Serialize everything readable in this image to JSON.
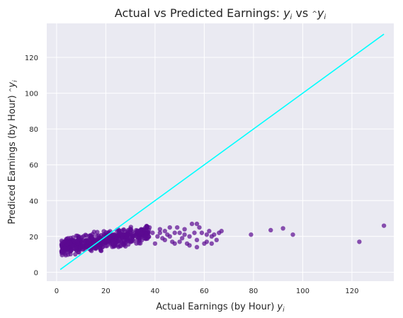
{
  "chart_data": {
    "type": "scatter",
    "title": "Actual vs Predicted Earnings: ",
    "title_y": "y",
    "title_vs": " vs ",
    "title_hat": "^",
    "title_sub": "i",
    "xlabel": "Actual Earnings (by Hour) ",
    "xlabel_y": "y",
    "xlabel_sub": "i",
    "ylabel": "Prediced Earnings (by Hour) ",
    "ylabel_hat": "^",
    "ylabel_y": "y",
    "ylabel_sub": "i",
    "xlim": [
      -4,
      137
    ],
    "ylim": [
      -5,
      139
    ],
    "xticks": [
      0,
      20,
      40,
      60,
      80,
      100,
      120
    ],
    "yticks": [
      0,
      20,
      40,
      60,
      80,
      100,
      120
    ],
    "grid": true,
    "legend": "none",
    "colors": {
      "background": "#eaeaf2",
      "grid": "#ffffff",
      "points": "#5b0a91",
      "line": "#00ffff"
    },
    "line": {
      "x": [
        1.5,
        133
      ],
      "y": [
        1.5,
        133
      ]
    },
    "scatter_cluster": {
      "description": "dense cluster of several hundred points",
      "x_range": [
        2,
        38
      ],
      "y_range": [
        2,
        28
      ],
      "approx_count": 600
    },
    "scatter_points": [
      [
        39,
        22
      ],
      [
        41,
        20
      ],
      [
        42,
        22
      ],
      [
        43,
        19
      ],
      [
        44,
        23
      ],
      [
        45,
        21
      ],
      [
        46,
        20
      ],
      [
        47,
        17
      ],
      [
        48,
        16
      ],
      [
        48,
        22
      ],
      [
        49,
        25
      ],
      [
        50,
        22
      ],
      [
        51,
        19
      ],
      [
        52,
        21
      ],
      [
        52,
        24
      ],
      [
        53,
        16
      ],
      [
        54,
        20
      ],
      [
        55,
        27
      ],
      [
        56,
        22
      ],
      [
        57,
        18
      ],
      [
        57,
        14
      ],
      [
        58,
        25
      ],
      [
        59,
        22
      ],
      [
        60,
        16
      ],
      [
        61,
        21
      ],
      [
        62,
        23
      ],
      [
        63,
        16
      ],
      [
        64,
        21
      ],
      [
        65,
        18
      ],
      [
        66,
        22
      ],
      [
        67,
        23
      ],
      [
        61,
        17
      ],
      [
        57,
        27
      ],
      [
        54,
        15
      ],
      [
        46,
        25
      ],
      [
        44,
        18
      ],
      [
        42,
        24
      ],
      [
        40,
        16
      ],
      [
        50,
        17
      ],
      [
        63,
        20
      ],
      [
        79,
        21
      ],
      [
        87,
        23.5
      ],
      [
        92,
        24.5
      ],
      [
        96,
        21
      ],
      [
        123,
        17
      ],
      [
        133,
        26
      ]
    ]
  }
}
